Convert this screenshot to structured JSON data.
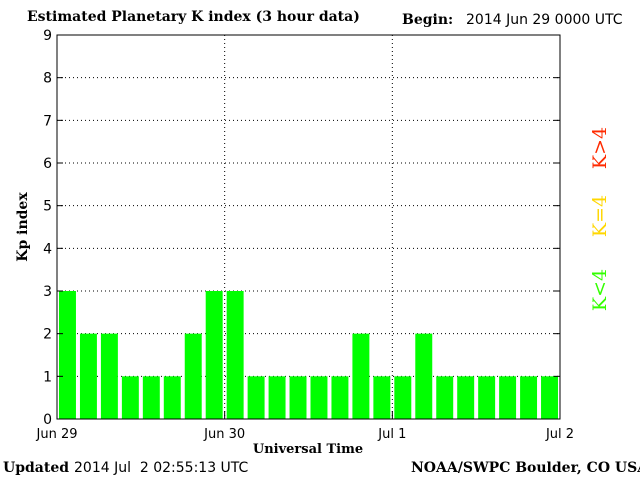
{
  "header": {
    "title": "Estimated Planetary K index (3 hour data)",
    "begin_label": "Begin:",
    "begin_value": "2014 Jun 29 0000 UTC"
  },
  "footer": {
    "updated_label": "Updated",
    "updated_value": "2014 Jul  2 02:55:13 UTC",
    "credit": "NOAA/SWPC Boulder, CO USA"
  },
  "legend": {
    "high": {
      "label": "K>4",
      "color": "#ff2a00"
    },
    "equal": {
      "label": "K=4",
      "color": "#ffd700"
    },
    "low": {
      "label": "K<4",
      "color": "#33ff00"
    }
  },
  "chart_data": {
    "type": "bar",
    "title": "Estimated Planetary K index (3 hour data)",
    "xlabel": "Universal Time",
    "ylabel": "Kp index",
    "ylim": [
      0,
      9
    ],
    "yticks": [
      0,
      1,
      2,
      3,
      4,
      5,
      6,
      7,
      8,
      9
    ],
    "xtick_labels": [
      "Jun 29",
      "Jun 30",
      "Jul 1",
      "Jul 2"
    ],
    "bar_color": "#00ff00",
    "grid": "dotted",
    "values": [
      3,
      2,
      2,
      1,
      1,
      1,
      2,
      3,
      3,
      1,
      1,
      1,
      1,
      1,
      2,
      1,
      1,
      2,
      1,
      1,
      1,
      1,
      1,
      1
    ]
  }
}
